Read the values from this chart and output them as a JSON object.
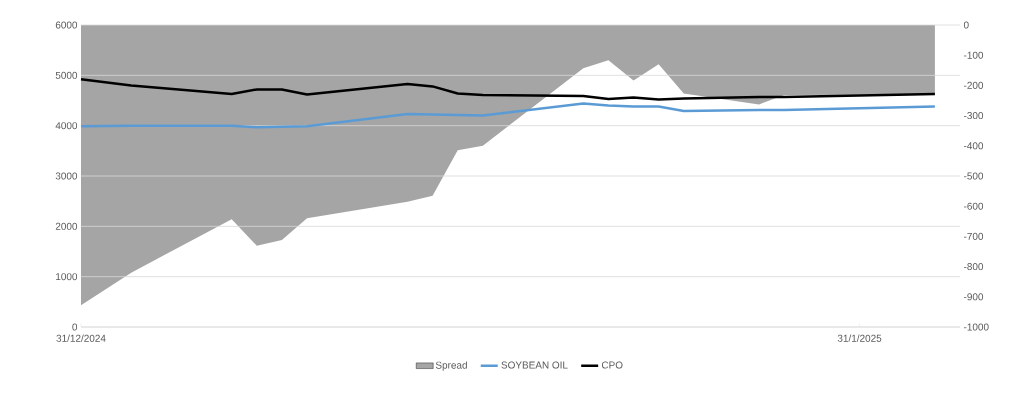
{
  "chart_data": {
    "type": "line",
    "x": [
      "2024-12-31",
      "2025-01-02",
      "2025-01-06",
      "2025-01-07",
      "2025-01-08",
      "2025-01-09",
      "2025-01-13",
      "2025-01-14",
      "2025-01-15",
      "2025-01-16",
      "2025-01-20",
      "2025-01-21",
      "2025-01-22",
      "2025-01-23",
      "2025-01-24",
      "2025-01-27",
      "2025-01-28",
      "2025-02-03"
    ],
    "series": [
      {
        "name": "Spread",
        "type": "area",
        "axis": "y2",
        "color": "#a5a5a5",
        "values": [
          -928,
          -820,
          -643,
          -731,
          -712,
          -640,
          -585,
          -565,
          -415,
          -400,
          -143,
          -117,
          -184,
          -130,
          -227,
          -263,
          -232,
          -230
        ]
      },
      {
        "name": "SOYBEAN OIL",
        "color": "#5b9bd5",
        "values": [
          3990,
          4000,
          4000,
          3970,
          3980,
          3990,
          4230,
          4220,
          4210,
          4200,
          4440,
          4400,
          4380,
          4380,
          4290,
          4310,
          4310,
          4380
        ]
      },
      {
        "name": "CPO",
        "color": "#000000",
        "values": [
          4920,
          4800,
          4630,
          4720,
          4720,
          4620,
          4830,
          4780,
          4640,
          4610,
          4590,
          4530,
          4560,
          4520,
          4540,
          4570,
          4570,
          4630
        ]
      }
    ],
    "xlim": [
      "2024-12-31",
      "2025-02-04"
    ],
    "xticks": [
      {
        "value": "2024-12-31",
        "label": "31/12/2024"
      },
      {
        "value": "2025-01-31",
        "label": "31/1/2025"
      }
    ],
    "ylim": [
      0,
      6000
    ],
    "yticks": [
      0,
      1000,
      2000,
      3000,
      4000,
      5000,
      6000
    ],
    "y2lim": [
      -1000,
      0
    ],
    "y2ticks": [
      -1000,
      -900,
      -800,
      -700,
      -600,
      -500,
      -400,
      -300,
      -200,
      -100,
      0
    ],
    "grid": "y",
    "legend": "bottom"
  }
}
